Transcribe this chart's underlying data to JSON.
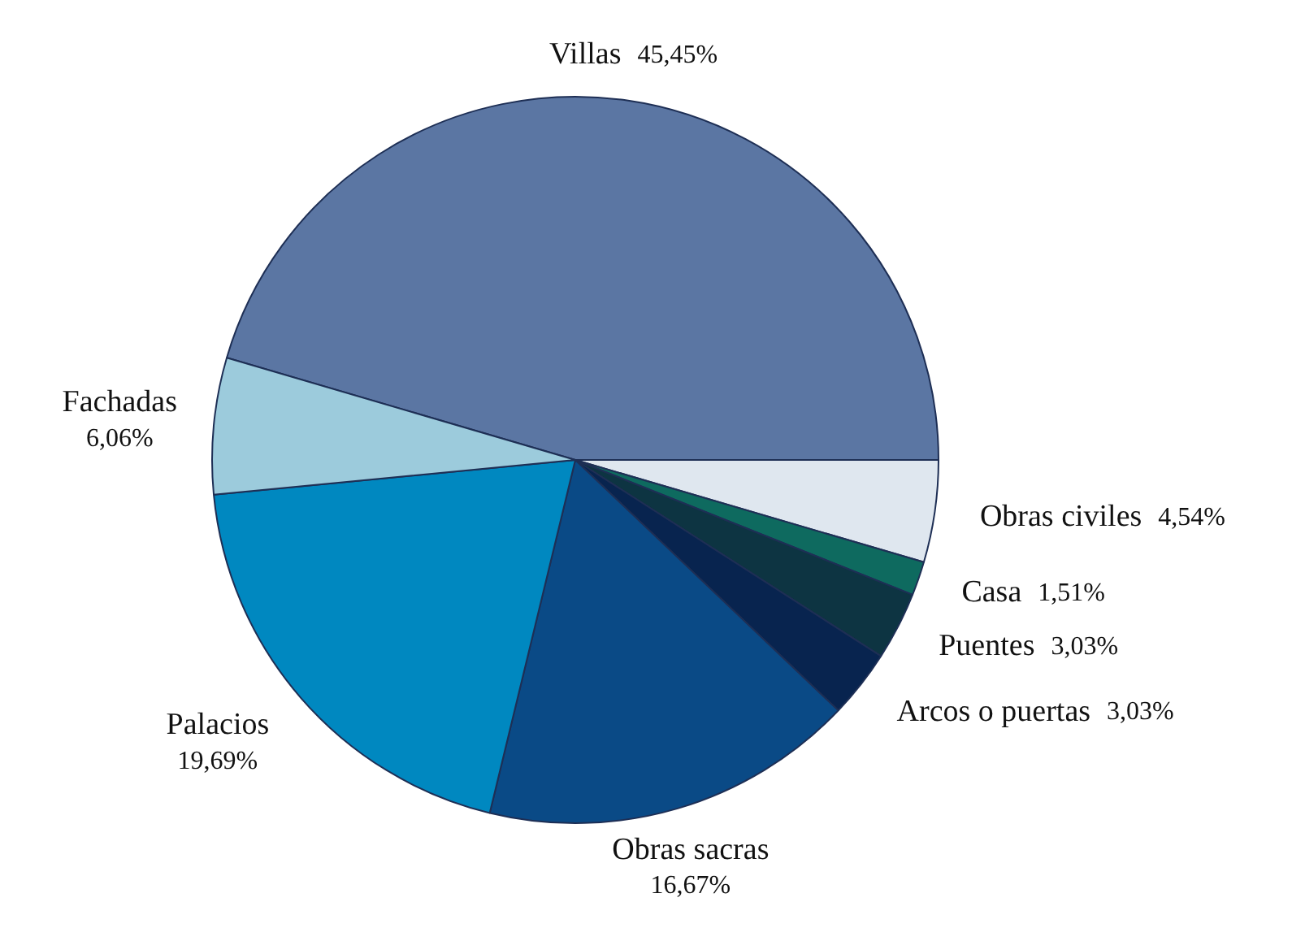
{
  "chart_data": {
    "type": "pie",
    "categories": [
      "Villas",
      "Obras civiles",
      "Casa",
      "Puentes",
      "Arcos o puertas",
      "Obras sacras",
      "Palacios",
      "Fachadas"
    ],
    "values": [
      45.45,
      4.54,
      1.51,
      3.03,
      3.03,
      16.67,
      19.69,
      6.06
    ],
    "value_labels": [
      "45,45%",
      "4,54%",
      "1,51%",
      "3,03%",
      "3,03%",
      "16,67%",
      "19,69%",
      "6,06%"
    ],
    "colors": [
      "#5b76a3",
      "#dfe7ef",
      "#0e6a5f",
      "#0d3442",
      "#08244f",
      "#0a4a86",
      "#0088c0",
      "#9ccbdc"
    ],
    "legend": false
  }
}
